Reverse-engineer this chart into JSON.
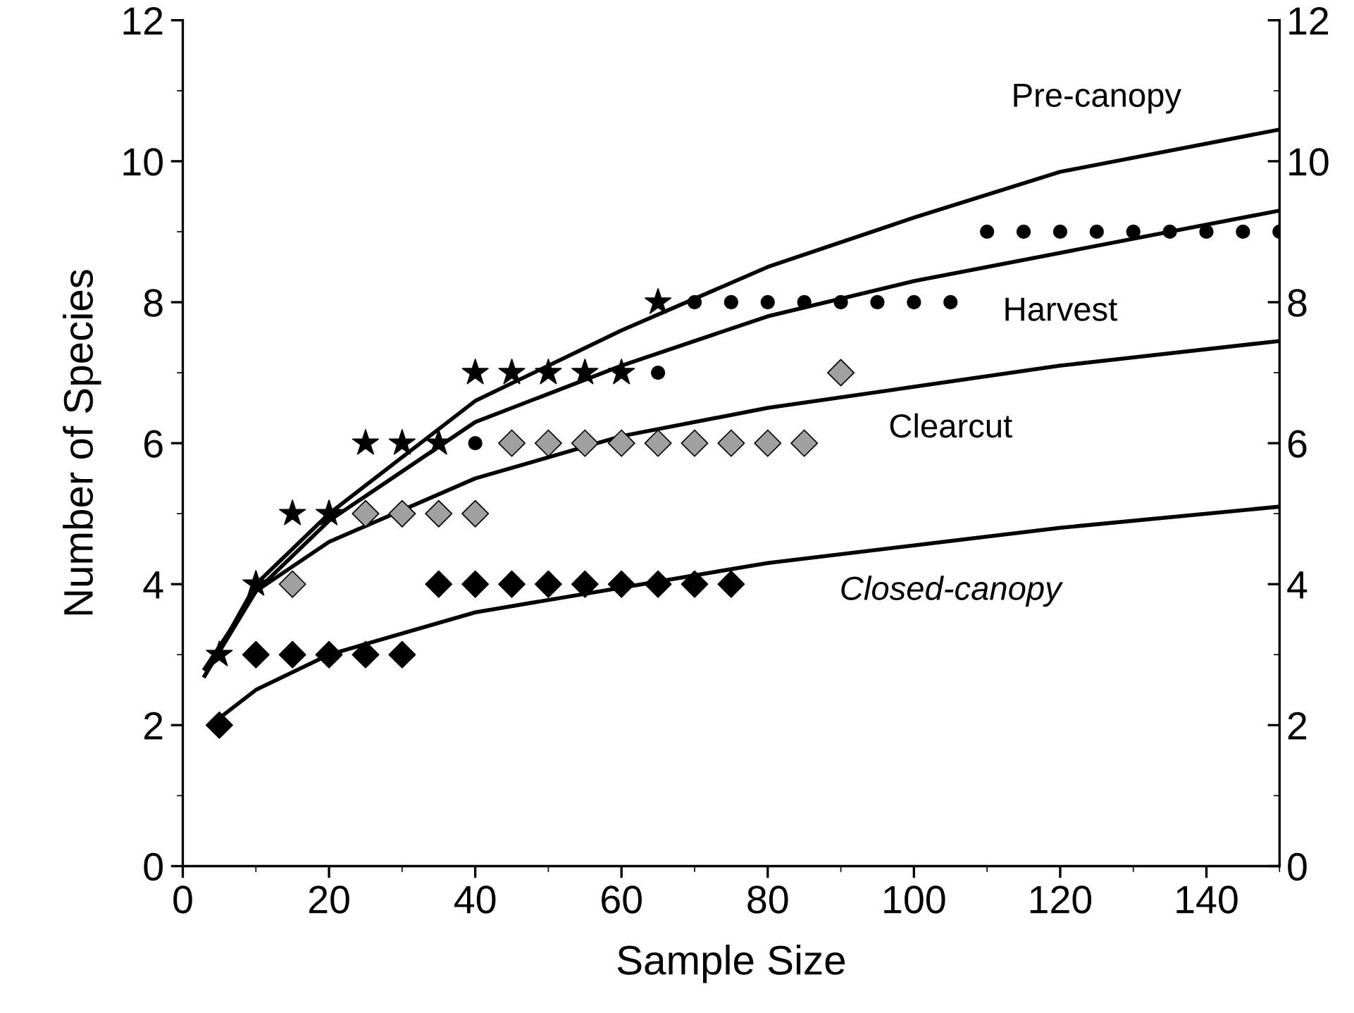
{
  "chart_data": {
    "type": "scatter",
    "xlabel": "Sample Size",
    "ylabel": "Number of Species",
    "xlim": [
      0,
      150
    ],
    "xticks": [
      0,
      20,
      40,
      60,
      80,
      100,
      120,
      140
    ],
    "ylim": [
      0,
      12
    ],
    "yticks": [
      0,
      2,
      4,
      6,
      8,
      10,
      12
    ],
    "y2lim": [
      0,
      12
    ],
    "y2ticks": [
      0,
      2,
      4,
      6,
      8,
      10,
      12
    ],
    "grid": false,
    "legend": false,
    "series": [
      {
        "marker": "star",
        "color": "#000000",
        "x": [
          5,
          10,
          15,
          20,
          25,
          30,
          35,
          40,
          45,
          50,
          55,
          60,
          65
        ],
        "values": [
          3,
          4,
          5,
          5,
          6,
          6,
          6,
          7,
          7,
          7,
          7,
          7,
          8
        ]
      },
      {
        "marker": "circle",
        "color": "#000000",
        "x": [
          40,
          65,
          70,
          75,
          80,
          85,
          90,
          95,
          100,
          105,
          110,
          115,
          120,
          125,
          130,
          135,
          140,
          145,
          150
        ],
        "values": [
          6,
          7,
          8,
          8,
          8,
          8,
          8,
          8,
          8,
          8,
          9,
          9,
          9,
          9,
          9,
          9,
          9,
          9,
          9
        ]
      },
      {
        "marker": "diamond",
        "color": "#a0a0a0",
        "x": [
          15,
          25,
          30,
          35,
          40,
          45,
          50,
          55,
          60,
          65,
          70,
          75,
          80,
          85,
          90
        ],
        "values": [
          4,
          5,
          5,
          5,
          5,
          6,
          6,
          6,
          6,
          6,
          6,
          6,
          6,
          6,
          7
        ]
      },
      {
        "marker": "diamond",
        "color": "#000000",
        "x": [
          5,
          10,
          15,
          20,
          25,
          30,
          35,
          40,
          45,
          50,
          55,
          60,
          65,
          70,
          75
        ],
        "values": [
          2,
          3,
          3,
          3,
          3,
          3,
          4,
          4,
          4,
          4,
          4,
          4,
          4,
          4,
          4
        ]
      },
      {
        "type": "line",
        "marker": "none",
        "color": "#000000",
        "x": [
          3,
          10,
          20,
          40,
          60,
          80,
          100,
          120,
          150
        ],
        "values": [
          2.7,
          4.0,
          5.0,
          6.6,
          7.6,
          8.5,
          9.2,
          9.85,
          10.45
        ]
      },
      {
        "type": "line",
        "marker": "none",
        "color": "#000000",
        "x": [
          3,
          10,
          20,
          40,
          60,
          80,
          100,
          120,
          150
        ],
        "values": [
          2.7,
          3.9,
          4.9,
          6.3,
          7.1,
          7.8,
          8.3,
          8.7,
          9.3
        ]
      },
      {
        "type": "line",
        "marker": "none",
        "color": "#000000",
        "x": [
          3,
          10,
          20,
          40,
          60,
          80,
          100,
          120,
          150
        ],
        "values": [
          2.8,
          3.9,
          4.6,
          5.5,
          6.1,
          6.5,
          6.8,
          7.1,
          7.45
        ]
      },
      {
        "type": "line",
        "marker": "none",
        "color": "#000000",
        "x": [
          5,
          10,
          20,
          40,
          60,
          80,
          100,
          120,
          150
        ],
        "values": [
          2.1,
          2.5,
          3.0,
          3.6,
          3.95,
          4.3,
          4.55,
          4.8,
          5.1
        ]
      }
    ],
    "annotations": [
      "Pre-canopy",
      "Harvest",
      "Clearcut",
      "Closed-canopy"
    ]
  }
}
